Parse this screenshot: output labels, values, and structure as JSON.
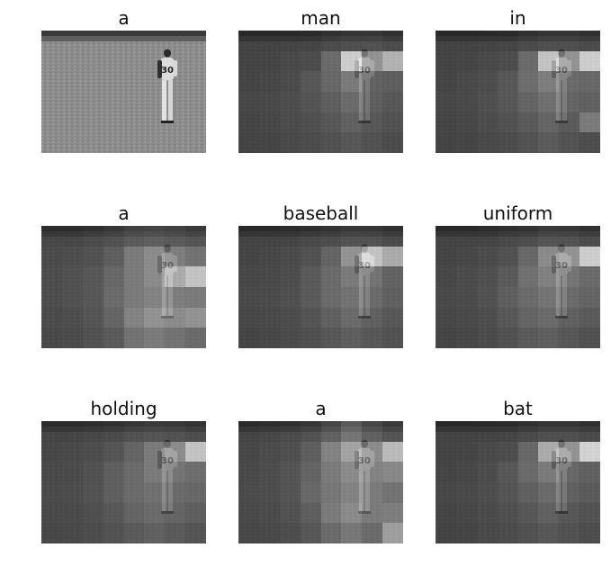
{
  "panels": [
    {
      "word": "a",
      "attention": null
    },
    {
      "word": "man",
      "attention": [
        [
          0.05,
          0.05,
          0.06,
          0.07,
          0.1,
          0.13,
          0.14,
          0.1
        ],
        [
          0.06,
          0.07,
          0.09,
          0.11,
          0.3,
          0.92,
          0.55,
          0.75
        ],
        [
          0.07,
          0.08,
          0.1,
          0.18,
          0.28,
          0.4,
          0.25,
          0.22
        ],
        [
          0.08,
          0.09,
          0.12,
          0.16,
          0.22,
          0.3,
          0.22,
          0.18
        ],
        [
          0.07,
          0.08,
          0.1,
          0.13,
          0.18,
          0.24,
          0.18,
          0.14
        ],
        [
          0.06,
          0.07,
          0.09,
          0.11,
          0.14,
          0.18,
          0.14,
          0.11
        ]
      ]
    },
    {
      "word": "in",
      "attention": [
        [
          0.05,
          0.05,
          0.06,
          0.07,
          0.1,
          0.13,
          0.13,
          0.1
        ],
        [
          0.06,
          0.07,
          0.09,
          0.12,
          0.3,
          0.85,
          0.55,
          0.92
        ],
        [
          0.07,
          0.09,
          0.12,
          0.18,
          0.32,
          0.42,
          0.3,
          0.28
        ],
        [
          0.08,
          0.09,
          0.13,
          0.18,
          0.26,
          0.33,
          0.26,
          0.24
        ],
        [
          0.07,
          0.08,
          0.11,
          0.14,
          0.2,
          0.26,
          0.2,
          0.4
        ],
        [
          0.06,
          0.07,
          0.09,
          0.11,
          0.15,
          0.2,
          0.15,
          0.12
        ]
      ]
    },
    {
      "word": "a",
      "attention": [
        [
          0.08,
          0.08,
          0.1,
          0.14,
          0.2,
          0.22,
          0.2,
          0.16
        ],
        [
          0.1,
          0.12,
          0.14,
          0.22,
          0.4,
          0.5,
          0.42,
          0.35
        ],
        [
          0.12,
          0.14,
          0.18,
          0.28,
          0.4,
          0.5,
          0.7,
          0.85
        ],
        [
          0.12,
          0.14,
          0.18,
          0.3,
          0.4,
          0.45,
          0.42,
          0.4
        ],
        [
          0.1,
          0.12,
          0.16,
          0.26,
          0.45,
          0.55,
          0.5,
          0.55
        ],
        [
          0.09,
          0.1,
          0.14,
          0.2,
          0.35,
          0.4,
          0.35,
          0.3
        ]
      ]
    },
    {
      "word": "baseball",
      "attention": [
        [
          0.06,
          0.06,
          0.07,
          0.09,
          0.12,
          0.15,
          0.14,
          0.1
        ],
        [
          0.07,
          0.08,
          0.1,
          0.14,
          0.26,
          0.55,
          0.85,
          0.7
        ],
        [
          0.08,
          0.09,
          0.12,
          0.2,
          0.3,
          0.4,
          0.35,
          0.25
        ],
        [
          0.09,
          0.1,
          0.13,
          0.2,
          0.3,
          0.35,
          0.3,
          0.24
        ],
        [
          0.08,
          0.09,
          0.11,
          0.16,
          0.24,
          0.3,
          0.24,
          0.18
        ],
        [
          0.07,
          0.08,
          0.1,
          0.13,
          0.18,
          0.22,
          0.18,
          0.14
        ]
      ]
    },
    {
      "word": "uniform",
      "attention": [
        [
          0.06,
          0.06,
          0.07,
          0.09,
          0.12,
          0.16,
          0.15,
          0.11
        ],
        [
          0.07,
          0.08,
          0.1,
          0.14,
          0.28,
          0.5,
          0.55,
          0.92
        ],
        [
          0.08,
          0.1,
          0.13,
          0.2,
          0.34,
          0.44,
          0.36,
          0.3
        ],
        [
          0.09,
          0.1,
          0.14,
          0.22,
          0.3,
          0.36,
          0.3,
          0.26
        ],
        [
          0.08,
          0.09,
          0.12,
          0.18,
          0.26,
          0.3,
          0.24,
          0.2
        ],
        [
          0.07,
          0.08,
          0.1,
          0.14,
          0.2,
          0.22,
          0.18,
          0.14
        ]
      ]
    },
    {
      "word": "holding",
      "attention": [
        [
          0.07,
          0.07,
          0.08,
          0.1,
          0.14,
          0.16,
          0.15,
          0.12
        ],
        [
          0.08,
          0.09,
          0.11,
          0.16,
          0.26,
          0.4,
          0.5,
          0.85
        ],
        [
          0.09,
          0.1,
          0.14,
          0.22,
          0.3,
          0.4,
          0.36,
          0.32
        ],
        [
          0.1,
          0.11,
          0.15,
          0.22,
          0.3,
          0.34,
          0.3,
          0.28
        ],
        [
          0.09,
          0.1,
          0.13,
          0.18,
          0.26,
          0.3,
          0.26,
          0.22
        ],
        [
          0.08,
          0.09,
          0.11,
          0.15,
          0.2,
          0.24,
          0.2,
          0.16
        ]
      ]
    },
    {
      "word": "a",
      "attention": [
        [
          0.07,
          0.08,
          0.1,
          0.14,
          0.24,
          0.36,
          0.24,
          0.16
        ],
        [
          0.08,
          0.1,
          0.13,
          0.22,
          0.45,
          0.65,
          0.5,
          0.8
        ],
        [
          0.09,
          0.12,
          0.16,
          0.26,
          0.4,
          0.5,
          0.45,
          0.48
        ],
        [
          0.1,
          0.12,
          0.16,
          0.28,
          0.38,
          0.45,
          0.4,
          0.35
        ],
        [
          0.09,
          0.1,
          0.14,
          0.22,
          0.4,
          0.5,
          0.4,
          0.42
        ],
        [
          0.08,
          0.09,
          0.12,
          0.18,
          0.3,
          0.38,
          0.3,
          0.62
        ]
      ]
    },
    {
      "word": "bat",
      "attention": [
        [
          0.05,
          0.05,
          0.06,
          0.07,
          0.1,
          0.13,
          0.13,
          0.1
        ],
        [
          0.06,
          0.07,
          0.09,
          0.12,
          0.28,
          0.7,
          0.55,
          0.95
        ],
        [
          0.07,
          0.08,
          0.11,
          0.18,
          0.3,
          0.4,
          0.28,
          0.24
        ],
        [
          0.08,
          0.09,
          0.12,
          0.16,
          0.24,
          0.3,
          0.24,
          0.2
        ],
        [
          0.07,
          0.08,
          0.1,
          0.13,
          0.18,
          0.24,
          0.18,
          0.15
        ],
        [
          0.06,
          0.07,
          0.09,
          0.11,
          0.14,
          0.18,
          0.14,
          0.12
        ]
      ]
    }
  ],
  "player": {
    "jersey_number": "30"
  }
}
